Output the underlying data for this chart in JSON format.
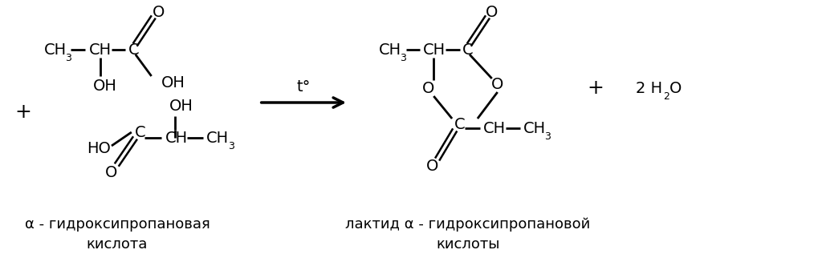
{
  "bg_color": "#ffffff",
  "text_color": "#000000",
  "fig_width": 10.24,
  "fig_height": 3.32,
  "dpi": 100,
  "fs": 14,
  "fs_sub": 9,
  "fs_label": 13,
  "label1_line1": "α - гидроксипропановая",
  "label1_line2": "кислота",
  "label2_line1": "лактид α - гидроксипропановой",
  "label2_line2": "кислоты"
}
